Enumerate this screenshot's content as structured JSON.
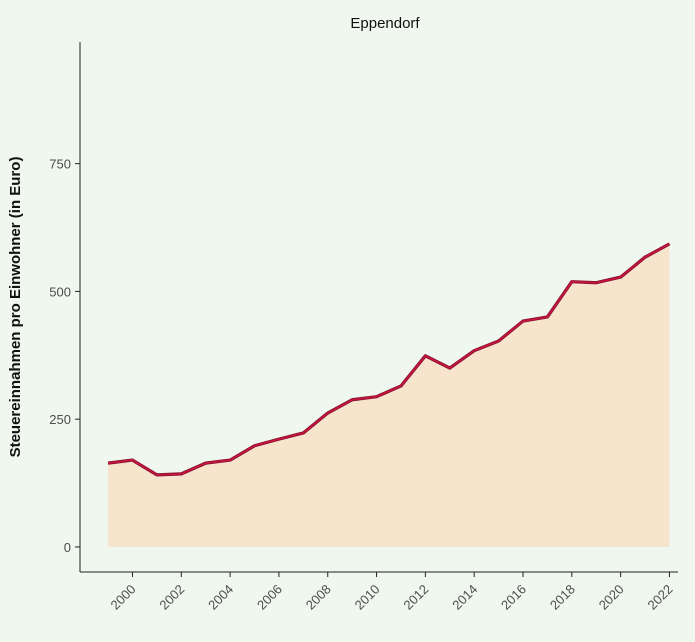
{
  "chart_data": {
    "type": "area",
    "title": "Eppendorf",
    "y_label": "Steuereinnahmen pro Einwohner (in Euro)",
    "x": [
      1999,
      2000,
      2001,
      2002,
      2003,
      2004,
      2005,
      2006,
      2007,
      2008,
      2009,
      2010,
      2011,
      2012,
      2013,
      2014,
      2015,
      2016,
      2017,
      2018,
      2019,
      2020,
      2021,
      2022
    ],
    "values": [
      164,
      170,
      141,
      143,
      164,
      170,
      198,
      211,
      223,
      262,
      288,
      294,
      315,
      374,
      350,
      384,
      403,
      442,
      450,
      519,
      517,
      528,
      567,
      593
    ],
    "line_color": "#c8143c",
    "fill_color": "#f7e4cd",
    "xlim": [
      1997.85,
      2022.35
    ],
    "xticks": [
      2000,
      2002,
      2004,
      2006,
      2008,
      2010,
      2012,
      2014,
      2016,
      2018,
      2020,
      2022
    ],
    "ylim": [
      -49,
      988
    ],
    "yticks": [
      0,
      250,
      500,
      750
    ],
    "grid": false
  }
}
